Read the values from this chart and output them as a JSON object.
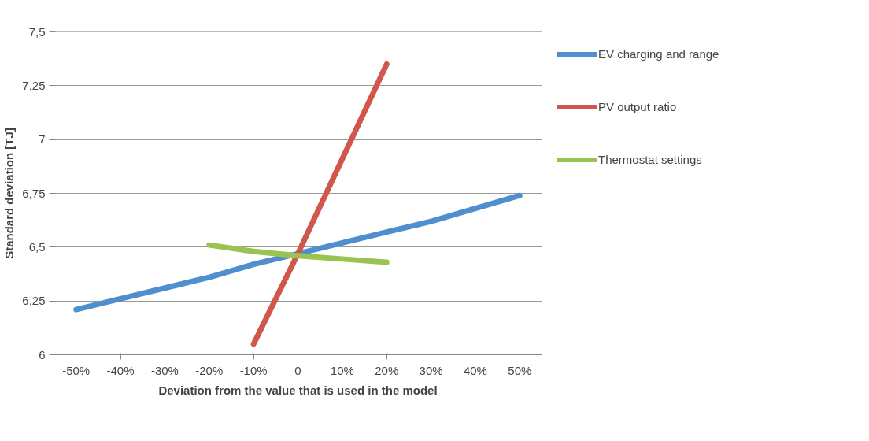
{
  "chart_data": {
    "type": "line",
    "xlabel": "Deviation from the value that is used in the model",
    "ylabel": "Standard deviation [TJ]",
    "categories": [
      "-50%",
      "-40%",
      "-30%",
      "-20%",
      "-10%",
      "0",
      "10%",
      "20%",
      "30%",
      "40%",
      "50%"
    ],
    "series": [
      {
        "name": "EV charging and range",
        "color": "#4f8fcd",
        "values": [
          6.21,
          6.26,
          6.31,
          6.36,
          6.42,
          6.47,
          6.52,
          6.57,
          6.62,
          6.68,
          6.74
        ]
      },
      {
        "name": "PV output ratio",
        "color": "#d0574b",
        "values": [
          null,
          null,
          null,
          null,
          6.05,
          6.47,
          6.91,
          7.35,
          null,
          null,
          null
        ]
      },
      {
        "name": "Thermostat settings",
        "color": "#9bc352",
        "values": [
          null,
          null,
          null,
          6.51,
          6.48,
          6.46,
          6.445,
          6.43,
          null,
          null,
          null
        ]
      }
    ],
    "ylim": [
      6,
      7.5
    ],
    "yticks": [
      6,
      {
        "value": 6.25,
        "label": "6,25"
      },
      {
        "value": 6.5,
        "label": "6,5"
      },
      {
        "value": 6.75,
        "label": "6,75"
      },
      7,
      {
        "value": 7.25,
        "label": "7,25"
      },
      {
        "value": 7.5,
        "label": "7,5"
      }
    ],
    "grid": "y",
    "legend": "right",
    "marker": "none",
    "line_style": "solid"
  }
}
